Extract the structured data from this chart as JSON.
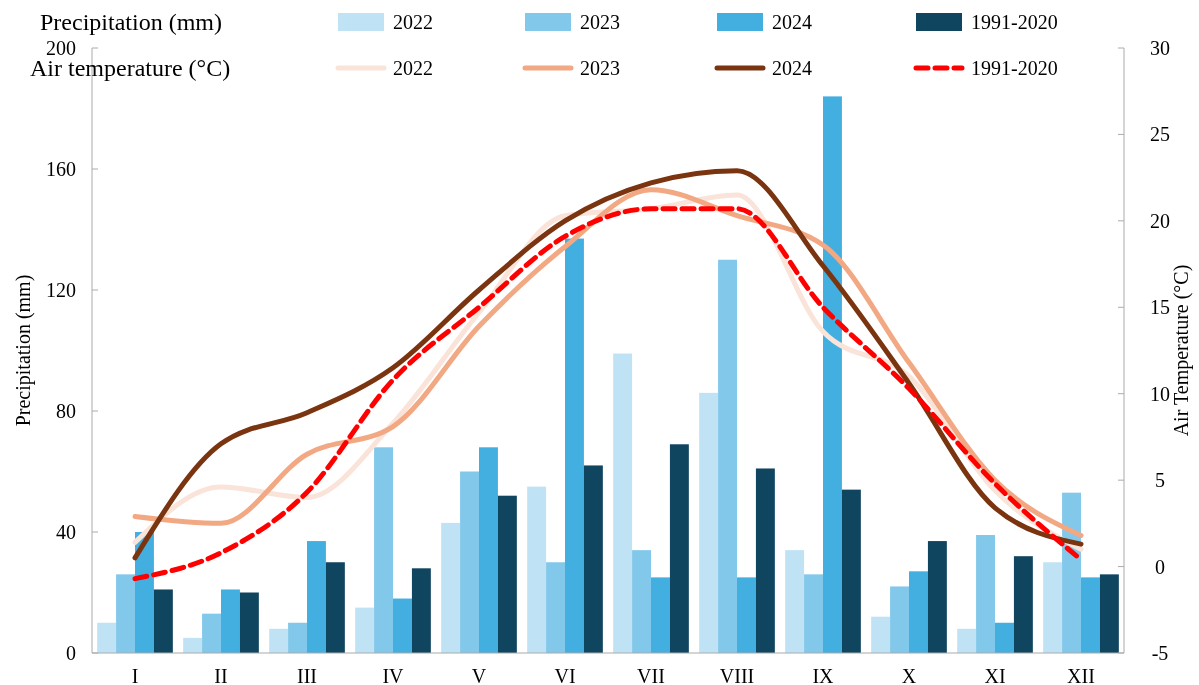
{
  "chart_data": {
    "type": "bar",
    "ylabel": "Precipitation (mm)",
    "y2label": "Air Temperature (°C)",
    "categories": [
      "I",
      "II",
      "III",
      "IV",
      "V",
      "VI",
      "VII",
      "VIII",
      "IX",
      "X",
      "XI",
      "XII"
    ],
    "ylim": [
      0,
      200
    ],
    "yticks": [
      0,
      40,
      80,
      120,
      160,
      200
    ],
    "y2lim": [
      -5,
      30
    ],
    "y2ticks": [
      -5,
      0,
      5,
      10,
      15,
      20,
      25,
      30
    ],
    "grid": false,
    "legend": "top",
    "annotations": [
      "Precipitation (mm)",
      "Air temperature (°C)"
    ],
    "series": [
      {
        "name": "2022",
        "color": "#bfe3f5",
        "values": [
          10,
          5,
          8,
          15,
          43,
          55,
          99,
          86,
          34,
          12,
          8,
          30
        ]
      },
      {
        "name": "2023",
        "color": "#82c8eb",
        "values": [
          26,
          13,
          10,
          68,
          60,
          30,
          34,
          130,
          26,
          22,
          39,
          53
        ]
      },
      {
        "name": "2024",
        "color": "#43aee0",
        "values": [
          40,
          21,
          37,
          18,
          68,
          137,
          25,
          25,
          184,
          27,
          10,
          25
        ]
      },
      {
        "name": "1991-2020",
        "color": "#104560",
        "values": [
          21,
          20,
          30,
          28,
          52,
          62,
          69,
          61,
          54,
          37,
          32,
          26
        ]
      },
      {
        "name": "2022",
        "type": "line",
        "axis": "y2",
        "color": "#fae3d8",
        "line_style": "solid",
        "values": [
          1.4,
          4.6,
          4.0,
          8.3,
          14.7,
          20.3,
          20.7,
          21.5,
          13.6,
          11.0,
          4.4,
          1.0
        ]
      },
      {
        "name": "2023",
        "type": "line",
        "axis": "y2",
        "color": "#f2a882",
        "line_style": "solid",
        "values": [
          2.9,
          2.5,
          6.5,
          8.1,
          13.9,
          18.5,
          21.8,
          20.3,
          18.6,
          11.8,
          5.0,
          1.8
        ]
      },
      {
        "name": "2024",
        "type": "line",
        "axis": "y2",
        "color": "#7a3510",
        "line_style": "solid",
        "values": [
          0.5,
          7.1,
          8.9,
          11.5,
          16.0,
          20.0,
          22.2,
          22.9,
          17.4,
          10.6,
          3.4,
          1.3
        ]
      },
      {
        "name": "1991-2020",
        "type": "line",
        "axis": "y2",
        "color": "#ff0000",
        "line_style": "dashed",
        "values": [
          -0.7,
          0.8,
          4.3,
          10.8,
          15.0,
          19.1,
          20.7,
          20.7,
          15.0,
          10.3,
          4.8,
          0.4
        ]
      }
    ]
  }
}
